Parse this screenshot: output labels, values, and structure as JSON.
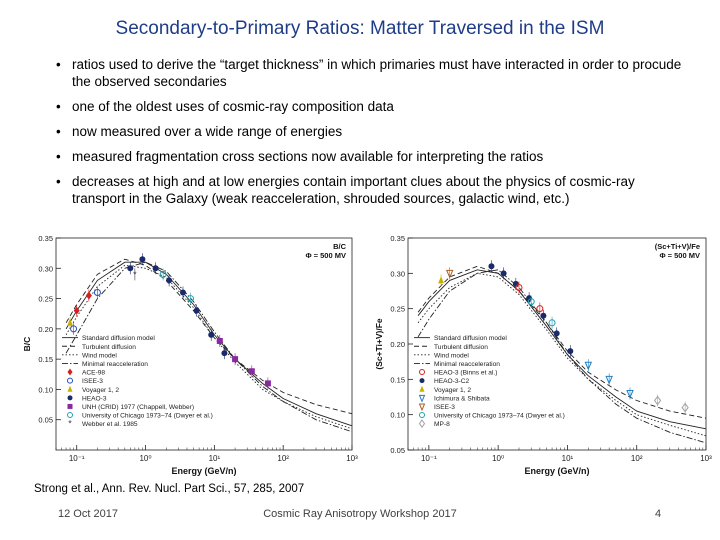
{
  "slide": {
    "title": "Secondary-to-Primary Ratios:  Matter Traversed in the ISM",
    "bullets": [
      "ratios used to derive the “target thickness” in which primaries must have interacted in order to procude the observed secondaries",
      "one of the oldest uses of cosmic-ray composition data",
      "now measured over a wide range of energies",
      "measured fragmentation cross sections now available for interpreting the ratios",
      "decreases at high and at low energies contain important clues about the physics of cosmic-ray transport in the Galaxy (weak reacceleration, shrouded sources, galactic wind, etc.)"
    ],
    "citation": "Strong et al., Ann. Rev. Nucl. Part Sci., 57, 285, 2007",
    "footer": {
      "date": "12 Oct 2017",
      "conference": "Cosmic Ray Anisotropy Workshop 2017",
      "page": "4"
    }
  },
  "chart_data": [
    {
      "type": "line",
      "xlabel": "Energy (GeV/n)",
      "ylabel": "B/C",
      "xscale": "log",
      "xlim": [
        0.05,
        1000
      ],
      "ylim": [
        0,
        0.35
      ],
      "x_ticks": [
        "10⁻¹",
        "10⁰",
        "10¹",
        "10²",
        "10³"
      ],
      "y_ticks": [
        "0.05",
        "0.10",
        "0.15",
        "0.20",
        "0.25",
        "0.30",
        "0.35"
      ],
      "annotation": [
        "B/C",
        "Φ = 500 MV"
      ],
      "legend_position": "bottom-left",
      "grid": false,
      "legend": [
        {
          "name": "Standard diffusion model",
          "style": "solid"
        },
        {
          "name": "Turbulent diffusion",
          "style": "dashed"
        },
        {
          "name": "Wind model",
          "style": "dotted"
        },
        {
          "name": "Minimal reacceleration",
          "style": "dashdot"
        },
        {
          "name": "ACE-98",
          "marker": "diamond",
          "color": "#d62020"
        },
        {
          "name": "ISEE-3",
          "marker": "circle-open",
          "color": "#2050c0"
        },
        {
          "name": "Voyager 1, 2",
          "marker": "triangle",
          "color": "#c8b000"
        },
        {
          "name": "HEAO-3",
          "marker": "circle",
          "color": "#1a2a6a"
        },
        {
          "name": "UNH (CRID) 1977 (Chappell, Webber)",
          "marker": "square",
          "color": "#8a2aa0"
        },
        {
          "name": "University of Chicago 1973–74 (Dwyer et al.)",
          "marker": "circle-open",
          "color": "#20a0b0"
        },
        {
          "name": "Webber et al. 1985",
          "marker": "star",
          "color": "#404040"
        }
      ],
      "series": [
        {
          "name": "Standard diffusion model",
          "x": [
            0.07,
            0.1,
            0.2,
            0.5,
            1,
            2,
            5,
            10,
            20,
            50,
            100,
            300,
            1000
          ],
          "y": [
            0.2,
            0.23,
            0.28,
            0.31,
            0.31,
            0.29,
            0.24,
            0.19,
            0.15,
            0.11,
            0.085,
            0.06,
            0.04
          ]
        },
        {
          "name": "Turbulent diffusion",
          "x": [
            0.07,
            0.1,
            0.2,
            0.5,
            1,
            2,
            5,
            10,
            20,
            50,
            100,
            300,
            1000
          ],
          "y": [
            0.21,
            0.24,
            0.29,
            0.315,
            0.305,
            0.28,
            0.23,
            0.185,
            0.15,
            0.115,
            0.095,
            0.075,
            0.06
          ]
        },
        {
          "name": "Wind model",
          "x": [
            0.07,
            0.1,
            0.2,
            0.5,
            1,
            2,
            5,
            10,
            20,
            50,
            100,
            300,
            1000
          ],
          "y": [
            0.19,
            0.22,
            0.27,
            0.305,
            0.3,
            0.285,
            0.235,
            0.185,
            0.145,
            0.1,
            0.08,
            0.055,
            0.035
          ]
        },
        {
          "name": "Minimal reacceleration",
          "x": [
            0.07,
            0.1,
            0.2,
            0.5,
            1,
            2,
            5,
            10,
            20,
            50,
            100,
            300,
            1000
          ],
          "y": [
            0.16,
            0.19,
            0.25,
            0.3,
            0.31,
            0.295,
            0.245,
            0.195,
            0.15,
            0.105,
            0.08,
            0.05,
            0.03
          ]
        }
      ],
      "points": [
        {
          "x": 0.1,
          "y": 0.23,
          "series": "ACE-98"
        },
        {
          "x": 0.15,
          "y": 0.255,
          "series": "ACE-98"
        },
        {
          "x": 0.09,
          "y": 0.2,
          "series": "ISEE-3"
        },
        {
          "x": 0.2,
          "y": 0.26,
          "series": "ISEE-3"
        },
        {
          "x": 0.08,
          "y": 0.21,
          "series": "Voyager 1, 2"
        },
        {
          "x": 0.6,
          "y": 0.3,
          "series": "HEAO-3"
        },
        {
          "x": 0.9,
          "y": 0.315,
          "series": "HEAO-3"
        },
        {
          "x": 1.4,
          "y": 0.3,
          "series": "HEAO-3"
        },
        {
          "x": 2.2,
          "y": 0.28,
          "series": "HEAO-3"
        },
        {
          "x": 3.5,
          "y": 0.26,
          "series": "HEAO-3"
        },
        {
          "x": 5.5,
          "y": 0.23,
          "series": "HEAO-3"
        },
        {
          "x": 9,
          "y": 0.19,
          "series": "HEAO-3"
        },
        {
          "x": 14,
          "y": 0.16,
          "series": "HEAO-3"
        },
        {
          "x": 12,
          "y": 0.18,
          "series": "UNH (CRID) 1977 (Chappell, Webber)"
        },
        {
          "x": 20,
          "y": 0.15,
          "series": "UNH (CRID) 1977 (Chappell, Webber)"
        },
        {
          "x": 35,
          "y": 0.13,
          "series": "UNH (CRID) 1977 (Chappell, Webber)"
        },
        {
          "x": 60,
          "y": 0.11,
          "series": "UNH (CRID) 1977 (Chappell, Webber)"
        },
        {
          "x": 1.8,
          "y": 0.29,
          "series": "University of Chicago 1973–74 (Dwyer et al.)"
        },
        {
          "x": 4.5,
          "y": 0.25,
          "series": "University of Chicago 1973–74 (Dwyer et al.)"
        },
        {
          "x": 0.7,
          "y": 0.29,
          "series": "Webber et al. 1985"
        }
      ]
    },
    {
      "type": "line",
      "xlabel": "Energy (GeV/n)",
      "ylabel": "(Sc+Ti+V)/Fe",
      "xscale": "log",
      "xlim": [
        0.05,
        1000
      ],
      "ylim": [
        0.05,
        0.35
      ],
      "x_ticks": [
        "10⁻¹",
        "10⁰",
        "10¹",
        "10²",
        "10³"
      ],
      "y_ticks": [
        "0.05",
        "0.10",
        "0.15",
        "0.20",
        "0.25",
        "0.30",
        "0.35"
      ],
      "annotation": [
        "(Sc+Ti+V)/Fe",
        "Φ = 500 MV"
      ],
      "legend_position": "bottom-left",
      "grid": false,
      "legend": [
        {
          "name": "Standard diffusion model",
          "style": "solid"
        },
        {
          "name": "Turbulent diffusion",
          "style": "dashed"
        },
        {
          "name": "Wind model",
          "style": "dotted"
        },
        {
          "name": "Minimal reacceleration",
          "style": "dashdot"
        },
        {
          "name": "HEAO-3 (Binns et al.)",
          "marker": "circle-open",
          "color": "#d62020"
        },
        {
          "name": "HEAO-3-C2",
          "marker": "circle",
          "color": "#1a2a6a"
        },
        {
          "name": "Voyager 1, 2",
          "marker": "triangle",
          "color": "#c8b000"
        },
        {
          "name": "Ichimura & Shibata",
          "marker": "triangle-down",
          "color": "#2080c0"
        },
        {
          "name": "ISEE-3",
          "marker": "triangle-down",
          "color": "#b06020"
        },
        {
          "name": "University of Chicago 1973–74 (Dwyer et al.)",
          "marker": "circle-open",
          "color": "#20a0b0"
        },
        {
          "name": "MP-8",
          "marker": "diamond-open",
          "color": "#a0a0a0"
        }
      ],
      "series": [
        {
          "name": "Standard diffusion model",
          "x": [
            0.07,
            0.1,
            0.2,
            0.5,
            1,
            2,
            5,
            10,
            20,
            50,
            100,
            300,
            1000
          ],
          "y": [
            0.24,
            0.26,
            0.29,
            0.305,
            0.3,
            0.275,
            0.225,
            0.185,
            0.155,
            0.125,
            0.105,
            0.09,
            0.08
          ]
        },
        {
          "name": "Turbulent diffusion",
          "x": [
            0.07,
            0.1,
            0.2,
            0.5,
            1,
            2,
            5,
            10,
            20,
            50,
            100,
            300,
            1000
          ],
          "y": [
            0.245,
            0.265,
            0.295,
            0.31,
            0.3,
            0.275,
            0.23,
            0.19,
            0.16,
            0.135,
            0.12,
            0.105,
            0.095
          ]
        },
        {
          "name": "Wind model",
          "x": [
            0.07,
            0.1,
            0.2,
            0.5,
            1,
            2,
            5,
            10,
            20,
            50,
            100,
            300,
            1000
          ],
          "y": [
            0.23,
            0.25,
            0.28,
            0.3,
            0.295,
            0.27,
            0.22,
            0.18,
            0.15,
            0.12,
            0.1,
            0.085,
            0.07
          ]
        },
        {
          "name": "Minimal reacceleration",
          "x": [
            0.07,
            0.1,
            0.2,
            0.5,
            1,
            2,
            5,
            10,
            20,
            50,
            100,
            300,
            1000
          ],
          "y": [
            0.21,
            0.235,
            0.275,
            0.3,
            0.305,
            0.28,
            0.23,
            0.185,
            0.15,
            0.115,
            0.095,
            0.075,
            0.06
          ]
        }
      ],
      "points": [
        {
          "x": 0.8,
          "y": 0.31,
          "series": "HEAO-3-C2"
        },
        {
          "x": 1.2,
          "y": 0.3,
          "series": "HEAO-3-C2"
        },
        {
          "x": 1.8,
          "y": 0.285,
          "series": "HEAO-3-C2"
        },
        {
          "x": 2.8,
          "y": 0.265,
          "series": "HEAO-3-C2"
        },
        {
          "x": 4.5,
          "y": 0.24,
          "series": "HEAO-3-C2"
        },
        {
          "x": 7,
          "y": 0.215,
          "series": "HEAO-3-C2"
        },
        {
          "x": 11,
          "y": 0.19,
          "series": "HEAO-3-C2"
        },
        {
          "x": 2,
          "y": 0.28,
          "series": "HEAO-3 (Binns et al.)"
        },
        {
          "x": 4,
          "y": 0.25,
          "series": "HEAO-3 (Binns et al.)"
        },
        {
          "x": 0.15,
          "y": 0.29,
          "series": "Voyager 1, 2"
        },
        {
          "x": 20,
          "y": 0.17,
          "series": "Ichimura & Shibata"
        },
        {
          "x": 40,
          "y": 0.15,
          "series": "Ichimura & Shibata"
        },
        {
          "x": 80,
          "y": 0.13,
          "series": "Ichimura & Shibata"
        },
        {
          "x": 0.2,
          "y": 0.3,
          "series": "ISEE-3"
        },
        {
          "x": 3,
          "y": 0.26,
          "series": "University of Chicago 1973–74 (Dwyer et al.)"
        },
        {
          "x": 6,
          "y": 0.23,
          "series": "University of Chicago 1973–74 (Dwyer et al.)"
        },
        {
          "x": 200,
          "y": 0.12,
          "series": "MP-8"
        },
        {
          "x": 500,
          "y": 0.11,
          "series": "MP-8"
        }
      ]
    }
  ]
}
